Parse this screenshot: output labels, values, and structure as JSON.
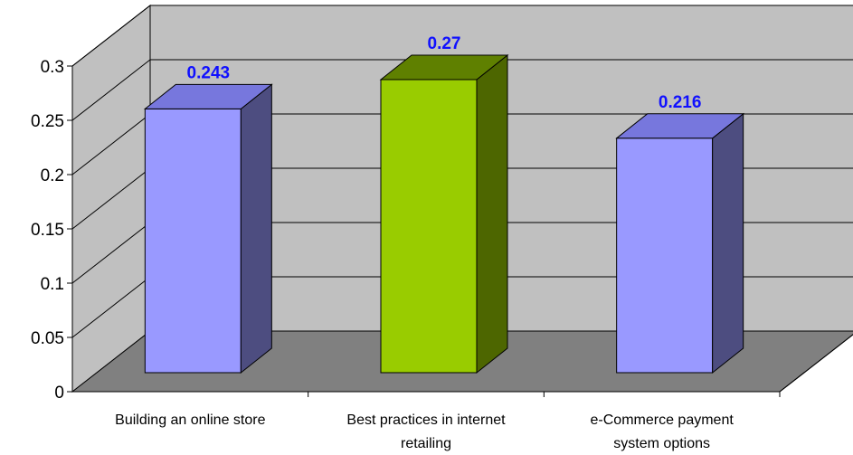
{
  "chart_data": {
    "type": "bar",
    "title": "",
    "xlabel": "",
    "ylabel": "",
    "categories": [
      [
        "Building an online store"
      ],
      [
        "Best practices in internet",
        "retailing"
      ],
      [
        "e-Commerce payment",
        "system options"
      ]
    ],
    "values": [
      0.243,
      0.27,
      0.216
    ],
    "data_labels": [
      "0.243",
      "0.27",
      "0.216"
    ],
    "ylim": [
      0,
      0.3
    ],
    "yticks": [
      "0",
      "0.05",
      "0.1",
      "0.15",
      "0.2",
      "0.25",
      "0.3"
    ],
    "grid": true,
    "legend": "none",
    "style": "3d-column",
    "colors": {
      "bar_default": "#9999ff",
      "bar_default_top": "#7777dd",
      "bar_default_side": "#4d4d80",
      "bar_highlight": "#99cc00",
      "bar_highlight_top": "#5f8000",
      "bar_highlight_side": "#4d6600",
      "back_wall": "#c0c0c0",
      "side_wall": "#c0c0c0",
      "floor": "#808080",
      "gridline": "#000000",
      "data_label": "#1010ff"
    },
    "highlight_index": 1
  }
}
